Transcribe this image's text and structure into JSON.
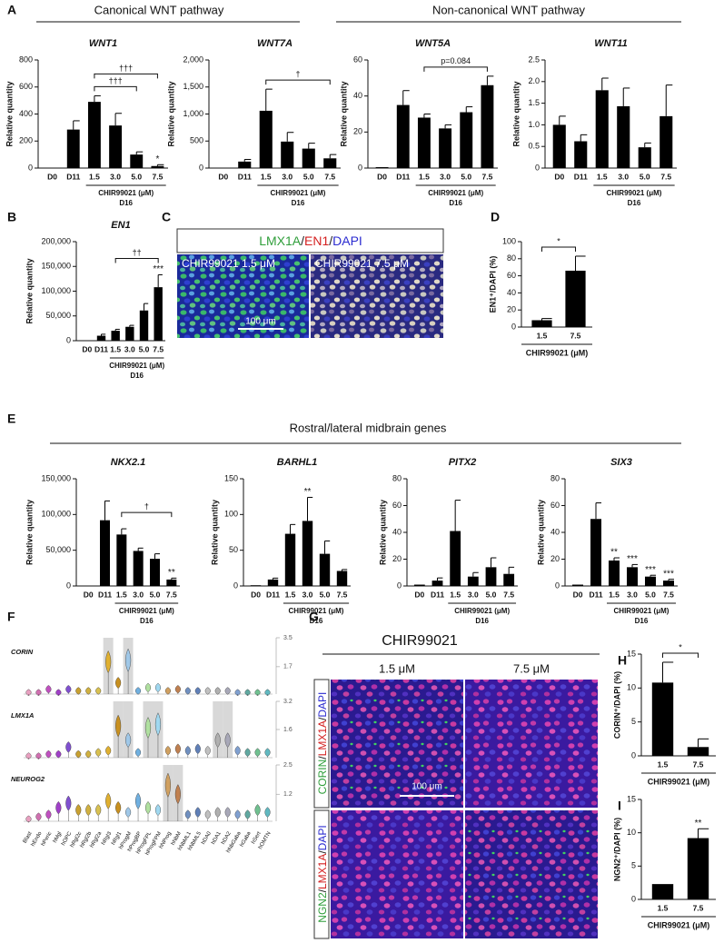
{
  "panel_labels": [
    "A",
    "B",
    "C",
    "D",
    "E",
    "F",
    "G",
    "H",
    "I"
  ],
  "headers": {
    "canonical": "Canonical WNT pathway",
    "noncanonical": "Non-canonical WNT pathway",
    "rostral": "Rostral/lateral midbrain genes"
  },
  "image_C": {
    "stain": [
      {
        "text": "LMX1A",
        "color": "#2f9e3a"
      },
      {
        "text": "/",
        "color": "#222222"
      },
      {
        "text": "EN1",
        "color": "#d42020"
      },
      {
        "text": "/",
        "color": "#222222"
      },
      {
        "text": "DAPI",
        "color": "#2b2bd0"
      }
    ],
    "left": "CHIR99021 1.5 μM",
    "right": "CHIR99021 7.5 μM",
    "scale": "100 μm"
  },
  "image_G": {
    "title": "CHIR99021",
    "columns": [
      "1.5 μM",
      "7.5 μM"
    ],
    "rows": [
      [
        {
          "text": "CORIN",
          "color": "#2f9e3a"
        },
        {
          "text": "/",
          "color": "#222222"
        },
        {
          "text": "LMX1A",
          "color": "#d42020"
        },
        {
          "text": "/",
          "color": "#222222"
        },
        {
          "text": "DAPI",
          "color": "#2b2bd0"
        }
      ],
      [
        {
          "text": "NGN2",
          "color": "#2f9e3a"
        },
        {
          "text": "/",
          "color": "#222222"
        },
        {
          "text": "LMX1A",
          "color": "#d42020"
        },
        {
          "text": "/",
          "color": "#222222"
        },
        {
          "text": "DAPI",
          "color": "#2b2bd0"
        }
      ]
    ],
    "scale": "100 μm"
  },
  "chart_data": [
    {
      "type": "bar",
      "title": "WNT1",
      "ylabel": "Relative quantity",
      "color": "#000000",
      "categories": [
        "D0",
        "D11",
        "1.5",
        "3.0",
        "5.0",
        "7.5"
      ],
      "values": [
        0,
        285,
        490,
        315,
        100,
        15
      ],
      "errors": [
        null,
        65,
        45,
        90,
        20,
        10
      ],
      "markers": [
        null,
        null,
        null,
        null,
        null,
        "*"
      ],
      "brackets": [
        {
          "text": "†††",
          "from": 2,
          "to": 4
        },
        {
          "text": "†††",
          "from": 2,
          "to": 5
        }
      ],
      "group": {
        "label": "CHIR99021 (μM)",
        "sublabel": "D16",
        "from": 2,
        "to": 5
      },
      "ylim": [
        0,
        800
      ],
      "yticks": [
        0,
        200,
        400,
        600,
        800
      ]
    },
    {
      "type": "bar",
      "title": "WNT7A",
      "ylabel": "Relative quantity",
      "color": "#000000",
      "categories": [
        "D0",
        "D11",
        "1.5",
        "3.0",
        "5.0",
        "7.5"
      ],
      "values": [
        0,
        120,
        1060,
        490,
        360,
        180
      ],
      "errors": [
        null,
        40,
        400,
        170,
        100,
        70
      ],
      "brackets": [
        {
          "text": "†",
          "from": 2,
          "to": 5
        }
      ],
      "group": {
        "label": "CHIR99021 (μM)",
        "sublabel": "D16",
        "from": 2,
        "to": 5
      },
      "ylim": [
        0,
        2000
      ],
      "yticks": [
        0,
        500,
        {
          "value": 1000,
          "label": "1,000"
        },
        {
          "value": 1500,
          "label": "1,500"
        },
        {
          "value": 2000,
          "label": "2,000"
        }
      ]
    },
    {
      "type": "bar",
      "title": "WNT5A",
      "ylabel": "Relative quantity",
      "color": "#000000",
      "categories": [
        "D0",
        "D11",
        "1.5",
        "3.0",
        "5.0",
        "7.5"
      ],
      "values": [
        0.5,
        35,
        28,
        22,
        31,
        46
      ],
      "errors": [
        null,
        8,
        2,
        2,
        3,
        5
      ],
      "brackets": [
        {
          "text": "p=0.084",
          "from": 2,
          "to": 5
        }
      ],
      "group": {
        "label": "CHIR99021 (μM)",
        "sublabel": "D16",
        "from": 2,
        "to": 5
      },
      "ylim": [
        0,
        60
      ],
      "yticks": [
        0,
        20,
        40,
        60
      ]
    },
    {
      "type": "bar",
      "title": "WNT11",
      "ylabel": "Relative quantity",
      "color": "#000000",
      "categories": [
        "D0",
        "D11",
        "1.5",
        "3.0",
        "5.0",
        "7.5"
      ],
      "values": [
        1.0,
        0.62,
        1.8,
        1.43,
        0.48,
        1.2
      ],
      "errors": [
        0.2,
        0.15,
        0.28,
        0.42,
        0.1,
        0.72
      ],
      "group": {
        "label": "CHIR99021 (μM)",
        "sublabel": "D16",
        "from": 2,
        "to": 5
      },
      "ylim": [
        0,
        2.5
      ],
      "yticks": [
        0,
        0.5,
        {
          "value": 1,
          "label": "1.0"
        },
        1.5,
        {
          "value": 2,
          "label": "2.0"
        },
        2.5
      ]
    },
    {
      "type": "bar",
      "title": "EN1",
      "ylabel": "Relative quantity",
      "color": "#000000",
      "categories": [
        "D0",
        "D11",
        "1.5",
        "3.0",
        "5.0",
        "7.5"
      ],
      "values": [
        0,
        10000,
        20000,
        28000,
        61000,
        108000
      ],
      "errors": [
        null,
        3000,
        3000,
        3000,
        14000,
        25000
      ],
      "markers": [
        null,
        null,
        null,
        null,
        null,
        "***"
      ],
      "brackets": [
        {
          "text": "††",
          "from": 2,
          "to": 5
        }
      ],
      "group": {
        "label": "CHIR99021 (μM)",
        "sublabel": "D16",
        "from": 2,
        "to": 5
      },
      "ylim": [
        0,
        200000
      ],
      "yticks": [
        0,
        {
          "value": 50000,
          "label": "50,000"
        },
        {
          "value": 100000,
          "label": "100,000"
        },
        {
          "value": 150000,
          "label": "150,000"
        },
        {
          "value": 200000,
          "label": "200,000"
        }
      ]
    },
    {
      "type": "bar",
      "ylabel": "EN1⁺/DAPI (%)",
      "xlabel": "CHIR99021 (μM)",
      "color": "#000000",
      "categories": [
        "1.5",
        "7.5"
      ],
      "values": [
        8,
        66
      ],
      "errors": [
        2,
        17
      ],
      "brackets": [
        {
          "text": "*",
          "from": 0,
          "to": 1
        }
      ],
      "ylim": [
        0,
        100
      ],
      "yticks": [
        0,
        20,
        40,
        60,
        80,
        100
      ]
    },
    {
      "type": "bar",
      "title": "NKX2.1",
      "ylabel": "Relative quantity",
      "color": "#000000",
      "categories": [
        "D0",
        "D11",
        "1.5",
        "3.0",
        "5.0",
        "7.5"
      ],
      "values": [
        0,
        92000,
        72000,
        49000,
        38000,
        9000
      ],
      "errors": [
        null,
        27000,
        8000,
        4000,
        7000,
        2000
      ],
      "markers": [
        null,
        null,
        null,
        null,
        null,
        "**"
      ],
      "brackets": [
        {
          "text": "†",
          "from": 2,
          "to": 5
        }
      ],
      "group": {
        "label": "CHIR99021 (μM)",
        "sublabel": "D16",
        "from": 2,
        "to": 5
      },
      "ylim": [
        0,
        150000
      ],
      "yticks": [
        0,
        {
          "value": 50000,
          "label": "50,000"
        },
        {
          "value": 100000,
          "label": "100,000"
        },
        {
          "value": 150000,
          "label": "150,000"
        }
      ]
    },
    {
      "type": "bar",
      "title": "BARHL1",
      "ylabel": "Relative quantity",
      "color": "#000000",
      "categories": [
        "D0",
        "D11",
        "1.5",
        "3.0",
        "5.0",
        "7.5"
      ],
      "values": [
        1,
        9,
        73,
        91,
        45,
        21
      ],
      "errors": [
        null,
        2,
        13,
        33,
        18,
        2
      ],
      "markers": [
        null,
        null,
        null,
        "**",
        null,
        null
      ],
      "group": {
        "label": "CHIR99021 (μM)",
        "sublabel": "D16",
        "from": 2,
        "to": 5
      },
      "ylim": [
        0,
        150
      ],
      "yticks": [
        0,
        50,
        100,
        150
      ]
    },
    {
      "type": "bar",
      "title": "PITX2",
      "ylabel": "Relative quantity",
      "color": "#000000",
      "categories": [
        "D0",
        "D11",
        "1.5",
        "3.0",
        "5.0",
        "7.5"
      ],
      "values": [
        1,
        4,
        41,
        7,
        14,
        9
      ],
      "errors": [
        null,
        2,
        23,
        3,
        7,
        5
      ],
      "group": {
        "label": "CHIR99021 (μM)",
        "sublabel": "D16",
        "from": 2,
        "to": 5
      },
      "ylim": [
        0,
        80
      ],
      "yticks": [
        0,
        20,
        40,
        60,
        80
      ]
    },
    {
      "type": "bar",
      "title": "SIX3",
      "ylabel": "Relative quantity",
      "color": "#000000",
      "categories": [
        "D0",
        "D11",
        "1.5",
        "3.0",
        "5.0",
        "7.5"
      ],
      "values": [
        1,
        50,
        19,
        14,
        7,
        4
      ],
      "errors": [
        null,
        12,
        2,
        2,
        1,
        1
      ],
      "markers": [
        null,
        null,
        "**",
        "***",
        "***",
        "***"
      ],
      "group": {
        "label": "CHIR99021 (μM)",
        "sublabel": "D16",
        "from": 2,
        "to": 5
      },
      "ylim": [
        0,
        80
      ],
      "yticks": [
        0,
        20,
        40,
        60,
        80
      ]
    },
    {
      "type": "violin",
      "categories": [
        "Blast",
        "hEndo",
        "hPeric",
        "hMgl",
        "hOPC",
        "hRgl2c",
        "hRgl2b",
        "hRgl2a",
        "hRgl3",
        "hRgl1",
        "hProgM",
        "hProgBP",
        "hProgFPL",
        "hProgFPM",
        "hNProg",
        "hNbM",
        "hNbML1",
        "hNbML5",
        "hDA0",
        "hDA1",
        "hDA2",
        "hNbGaba",
        "hGaba",
        "hSert",
        "hOMTN"
      ],
      "colors": [
        "#e8a0c0",
        "#d070b0",
        "#c050c0",
        "#a040c8",
        "#8050d0",
        "#c8a030",
        "#d0b040",
        "#d8c050",
        "#e0b030",
        "#c89020",
        "#a0c8e8",
        "#70b0e0",
        "#b0e0a0",
        "#a0d8f0",
        "#d0a060",
        "#c08050",
        "#7090c0",
        "#6080b8",
        "#c0c0c0",
        "#b0b0b0",
        "#a8a8b8",
        "#80a0d0",
        "#60a8a0",
        "#70c090",
        "#60b8c0"
      ],
      "rows": [
        {
          "name": "CORIN",
          "ylim": [
            0,
            3.5
          ],
          "yticks": [
            1.7,
            3.5
          ],
          "highlight": [
            8,
            10
          ],
          "values": [
            0.1,
            0.1,
            0.3,
            0.1,
            0.3,
            0.2,
            0.2,
            0.2,
            2.0,
            0.7,
            2.1,
            0.2,
            0.4,
            0.4,
            0.2,
            0.3,
            0.2,
            0.2,
            0.2,
            0.2,
            0.2,
            0.1,
            0.1,
            0.1,
            0.1
          ]
        },
        {
          "name": "LMX1A",
          "ylim": [
            0,
            3.2
          ],
          "yticks": [
            1.6,
            3.2
          ],
          "highlight": [
            9,
            10,
            12,
            13,
            19,
            20
          ],
          "values": [
            0.1,
            0.1,
            0.2,
            0.2,
            0.6,
            0.2,
            0.2,
            0.3,
            0.4,
            1.8,
            1.0,
            0.3,
            1.7,
            1.9,
            0.4,
            0.5,
            0.4,
            0.5,
            0.4,
            1.0,
            1.0,
            0.4,
            0.3,
            0.3,
            0.3
          ]
        },
        {
          "name": "NEUROG2",
          "ylim": [
            0,
            2.5
          ],
          "yticks": [
            1.2,
            2.5
          ],
          "highlight": [
            14,
            15
          ],
          "values": [
            0.1,
            0.2,
            0.3,
            0.6,
            0.8,
            0.5,
            0.5,
            0.5,
            0.9,
            0.6,
            0.4,
            0.9,
            0.6,
            0.5,
            1.6,
            1.2,
            0.3,
            0.4,
            0.3,
            0.4,
            0.4,
            0.3,
            0.3,
            0.5,
            0.4
          ]
        }
      ]
    },
    {
      "type": "bar",
      "ylabel": "CORIN⁺/DAPI (%)",
      "xlabel": "CHIR99021 (μM)",
      "color": "#000000",
      "categories": [
        "1.5",
        "7.5"
      ],
      "values": [
        10.8,
        1.3
      ],
      "errors": [
        3,
        1.2
      ],
      "brackets": [
        {
          "text": "*",
          "from": 0,
          "to": 1
        }
      ],
      "ylim": [
        0,
        15
      ],
      "yticks": [
        0,
        5,
        10,
        15
      ]
    },
    {
      "type": "bar",
      "ylabel": "NGN2⁺/DAPI (%)",
      "xlabel": "CHIR99021 (μM)",
      "color": "#000000",
      "categories": [
        "1.5",
        "7.5"
      ],
      "values": [
        2.3,
        9.2
      ],
      "errors": [
        null,
        1.4
      ],
      "markers": [
        null,
        "**"
      ],
      "ylim": [
        0,
        15
      ],
      "yticks": [
        0,
        5,
        10,
        15
      ]
    }
  ]
}
